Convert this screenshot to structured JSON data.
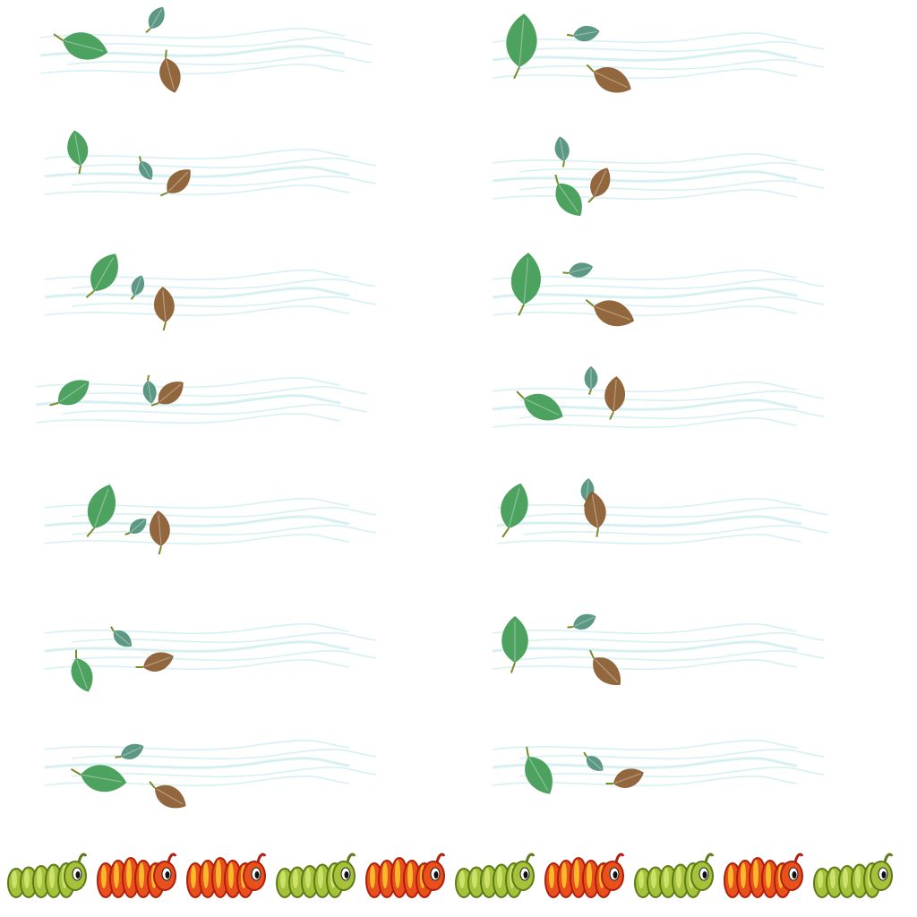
{
  "sprite_sheet": {
    "background": "#ffffff",
    "wind_color": "#cdeef0",
    "leaf_colors": {
      "green": "#3f9a52",
      "teal": "#4f8f7a",
      "brown": "#8a5a2e",
      "stem": "#7d8a2a"
    },
    "frames": [
      {
        "id": "wind-leaves-frame-1"
      },
      {
        "id": "wind-leaves-frame-2"
      },
      {
        "id": "wind-leaves-frame-3"
      },
      {
        "id": "wind-leaves-frame-4"
      },
      {
        "id": "wind-leaves-frame-5"
      },
      {
        "id": "wind-leaves-frame-6"
      },
      {
        "id": "wind-leaves-frame-7"
      },
      {
        "id": "wind-leaves-frame-8"
      },
      {
        "id": "wind-leaves-frame-9"
      },
      {
        "id": "wind-leaves-frame-10"
      },
      {
        "id": "wind-leaves-frame-11"
      },
      {
        "id": "wind-leaves-frame-12"
      },
      {
        "id": "wind-leaves-frame-13"
      },
      {
        "id": "wind-leaves-frame-14"
      }
    ],
    "caterpillars": [
      {
        "variant": "green"
      },
      {
        "variant": "orange"
      },
      {
        "variant": "orange"
      },
      {
        "variant": "green"
      },
      {
        "variant": "orange"
      },
      {
        "variant": "green"
      },
      {
        "variant": "orange"
      },
      {
        "variant": "green"
      },
      {
        "variant": "orange"
      },
      {
        "variant": "green"
      }
    ],
    "caterpillar_colors": {
      "green": {
        "body": "#a6c23a",
        "dark": "#5e7a18",
        "light": "#d7e87a"
      },
      "orange": {
        "body": "#e8501c",
        "dark": "#b01e0e",
        "light": "#ffd22e"
      }
    }
  }
}
